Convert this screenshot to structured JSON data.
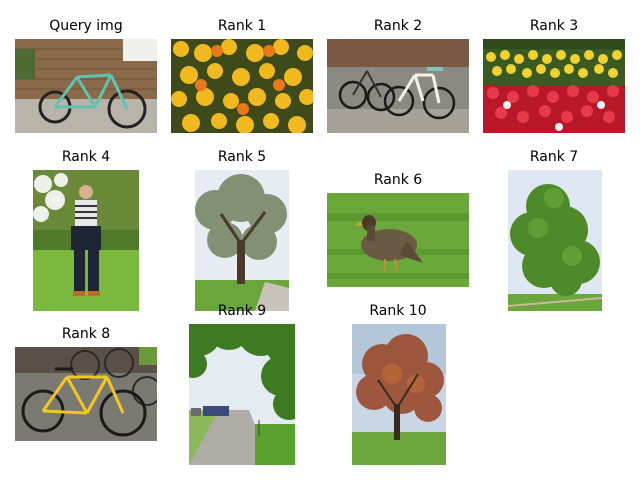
{
  "panels": [
    {
      "title": "Query img",
      "subject": "green bicycle leaning against brick wall"
    },
    {
      "title": "Rank 1",
      "subject": "yellow and orange marigold flowers"
    },
    {
      "title": "Rank 2",
      "subject": "bicycles parked on pavement"
    },
    {
      "title": "Rank 3",
      "subject": "flower bed with yellow and red flowers"
    },
    {
      "title": "Rank 4",
      "subject": "person standing in garden"
    },
    {
      "title": "Rank 5",
      "subject": "bare tree beside path"
    },
    {
      "title": "Rank 6",
      "subject": "duck on grass"
    },
    {
      "title": "Rank 7",
      "subject": "large green tree"
    },
    {
      "title": "Rank 8",
      "subject": "yellow bicycle with parked bikes"
    },
    {
      "title": "Rank 9",
      "subject": "tree-lined road with cars"
    },
    {
      "title": "Rank 10",
      "subject": "autumn tree in park"
    }
  ],
  "colors": {
    "sky": "#cfdbe8",
    "grass": "#6fae3a",
    "foliage": "#4f8a2a",
    "brick": "#8a6a4a",
    "pavement": "#9a9a94"
  }
}
